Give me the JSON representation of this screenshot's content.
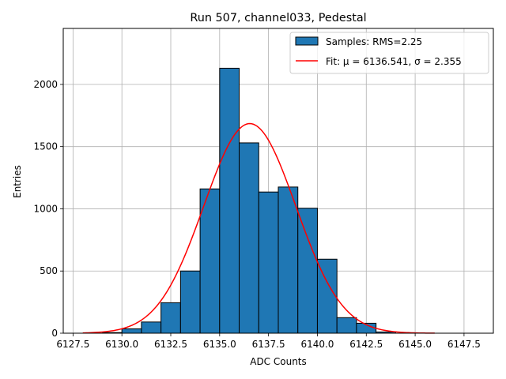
{
  "chart_data": {
    "type": "bar",
    "title": "Run 507, channel033, Pedestal",
    "xlabel": "ADC Counts",
    "ylabel": "Entries",
    "xlim": [
      6127.0,
      6149.0
    ],
    "ylim": [
      0,
      2450
    ],
    "xticks": [
      6127.5,
      6130.0,
      6132.5,
      6135.0,
      6137.5,
      6140.0,
      6142.5,
      6145.0,
      6147.5
    ],
    "xtick_labels": [
      "6127.5",
      "6130.0",
      "6132.5",
      "6135.0",
      "6137.5",
      "6140.0",
      "6142.5",
      "6145.0",
      "6147.5"
    ],
    "yticks": [
      0,
      500,
      1000,
      1500,
      2000
    ],
    "ytick_labels": [
      "0",
      "500",
      "1000",
      "1500",
      "2000"
    ],
    "grid": true,
    "legend_position": "top-right",
    "bins": [
      {
        "x0": 6129.0,
        "x1": 6130.0,
        "value": 5
      },
      {
        "x0": 6130.0,
        "x1": 6131.0,
        "value": 35
      },
      {
        "x0": 6131.0,
        "x1": 6132.0,
        "value": 90
      },
      {
        "x0": 6132.0,
        "x1": 6133.0,
        "value": 245
      },
      {
        "x0": 6133.0,
        "x1": 6134.0,
        "value": 500
      },
      {
        "x0": 6134.0,
        "x1": 6135.0,
        "value": 1160
      },
      {
        "x0": 6135.0,
        "x1": 6136.0,
        "value": 2130
      },
      {
        "x0": 6136.0,
        "x1": 6137.0,
        "value": 1530
      },
      {
        "x0": 6137.0,
        "x1": 6138.0,
        "value": 1135
      },
      {
        "x0": 6138.0,
        "x1": 6139.0,
        "value": 1175
      },
      {
        "x0": 6139.0,
        "x1": 6140.0,
        "value": 1005
      },
      {
        "x0": 6140.0,
        "x1": 6141.0,
        "value": 595
      },
      {
        "x0": 6141.0,
        "x1": 6142.0,
        "value": 125
      },
      {
        "x0": 6142.0,
        "x1": 6143.0,
        "value": 80
      },
      {
        "x0": 6143.0,
        "x1": 6144.0,
        "value": 10
      }
    ],
    "fit": {
      "mu": 6136.541,
      "sigma": 2.355,
      "amplitude": 1685,
      "x_range": [
        6128.0,
        6146.0
      ]
    },
    "series": [
      {
        "name": "Samples: RMS=2.25",
        "kind": "histogram",
        "color": "#1f77b4",
        "edge_color": "#000000"
      },
      {
        "name": "Fit: μ = 6136.541, σ = 2.355",
        "kind": "line",
        "color": "#ff0000"
      }
    ]
  }
}
